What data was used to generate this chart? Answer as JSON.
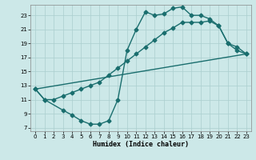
{
  "xlabel": "Humidex (Indice chaleur)",
  "xlim": [
    -0.5,
    23.5
  ],
  "ylim": [
    6.5,
    24.5
  ],
  "xticks": [
    0,
    1,
    2,
    3,
    4,
    5,
    6,
    7,
    8,
    9,
    10,
    11,
    12,
    13,
    14,
    15,
    16,
    17,
    18,
    19,
    20,
    21,
    22,
    23
  ],
  "yticks": [
    7,
    9,
    11,
    13,
    15,
    17,
    19,
    21,
    23
  ],
  "bg_color": "#cce8e8",
  "line_color": "#1a6e6e",
  "grid_color": "#aacece",
  "curve1_x": [
    0,
    1,
    3,
    4,
    5,
    6,
    7,
    8,
    9,
    10,
    11,
    12,
    13,
    14,
    15,
    16,
    17,
    18,
    19,
    20,
    21,
    22,
    23
  ],
  "curve1_y": [
    12.5,
    11.0,
    9.5,
    8.8,
    8.0,
    7.5,
    7.5,
    8.0,
    11.0,
    18.0,
    21.0,
    23.5,
    23.0,
    23.2,
    24.0,
    24.2,
    23.0,
    23.0,
    22.5,
    21.5,
    19.0,
    18.5,
    17.5
  ],
  "curve2_x": [
    0,
    1,
    2,
    3,
    4,
    5,
    6,
    7,
    8,
    9,
    10,
    11,
    12,
    13,
    14,
    15,
    16,
    17,
    18,
    19,
    20,
    21,
    22,
    23
  ],
  "curve2_y": [
    12.5,
    11.0,
    11.0,
    11.5,
    12.0,
    12.5,
    13.0,
    13.5,
    14.5,
    15.5,
    16.5,
    17.5,
    18.5,
    19.5,
    20.5,
    21.2,
    22.0,
    22.0,
    22.0,
    22.2,
    21.5,
    19.0,
    18.0,
    17.5
  ],
  "curve3_x": [
    0,
    23
  ],
  "curve3_y": [
    12.5,
    17.5
  ],
  "marker": "D",
  "markersize": 2.5,
  "linewidth": 1.0
}
